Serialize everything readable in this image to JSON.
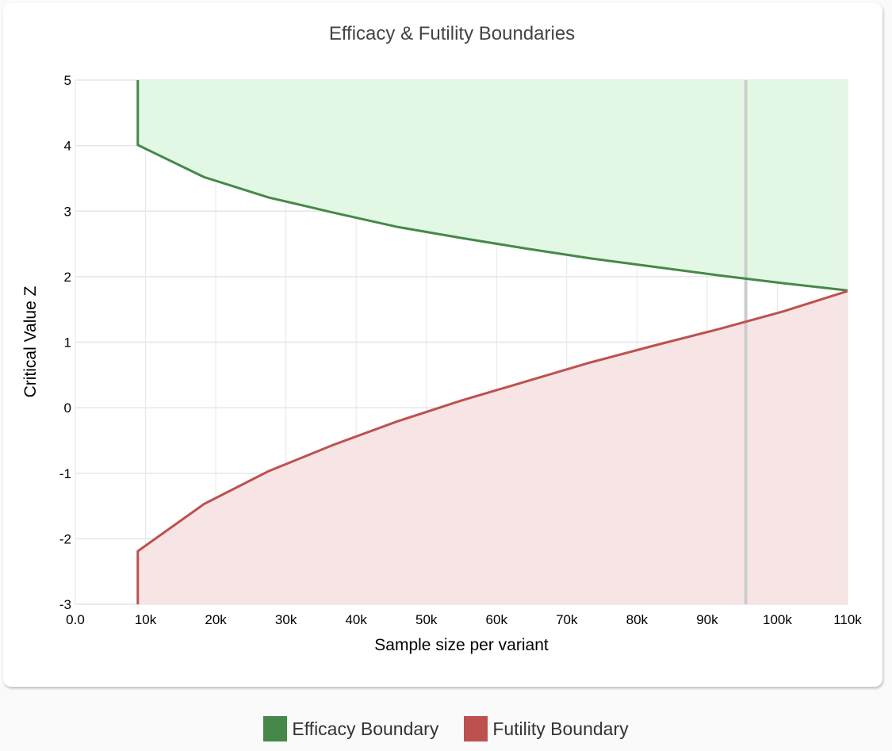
{
  "chart_data": {
    "type": "area",
    "title": "Efficacy & Futility Boundaries",
    "xlabel": "Sample size per variant",
    "ylabel": "Critical Value Z",
    "xlim": [
      0,
      110000
    ],
    "ylim": [
      -3,
      5
    ],
    "x_ticks": [
      0,
      10000,
      20000,
      30000,
      40000,
      50000,
      60000,
      70000,
      80000,
      90000,
      100000,
      110000
    ],
    "x_tick_labels": [
      "0.0",
      "10k",
      "20k",
      "30k",
      "40k",
      "50k",
      "60k",
      "70k",
      "80k",
      "90k",
      "100k",
      "110k"
    ],
    "y_ticks": [
      5,
      4,
      3,
      2,
      1,
      0,
      -1,
      -2,
      -3
    ],
    "y_tick_labels": [
      "5",
      "4",
      "3",
      "2",
      "1",
      "0",
      "-1",
      "-2",
      "-3"
    ],
    "grid": true,
    "legend_position": "bottom",
    "x": [
      8900,
      18330,
      27500,
      36670,
      45830,
      55000,
      64170,
      73330,
      82500,
      91670,
      100830,
      110000
    ],
    "series": [
      {
        "name": "Efficacy Boundary",
        "color": "#46884a",
        "fill": "#e2f8e4",
        "values": [
          4.01,
          3.52,
          3.21,
          2.98,
          2.76,
          2.59,
          2.43,
          2.28,
          2.15,
          2.02,
          1.9,
          1.79
        ]
      },
      {
        "name": "Futility Boundary",
        "color": "#bd5150",
        "fill": "#f7e4e5",
        "values": [
          -2.19,
          -1.47,
          -0.97,
          -0.57,
          -0.21,
          0.11,
          0.4,
          0.69,
          0.95,
          1.2,
          1.47,
          1.78
        ]
      }
    ],
    "reference_line_x": 95500,
    "reference_line_color": "#cccccc"
  }
}
